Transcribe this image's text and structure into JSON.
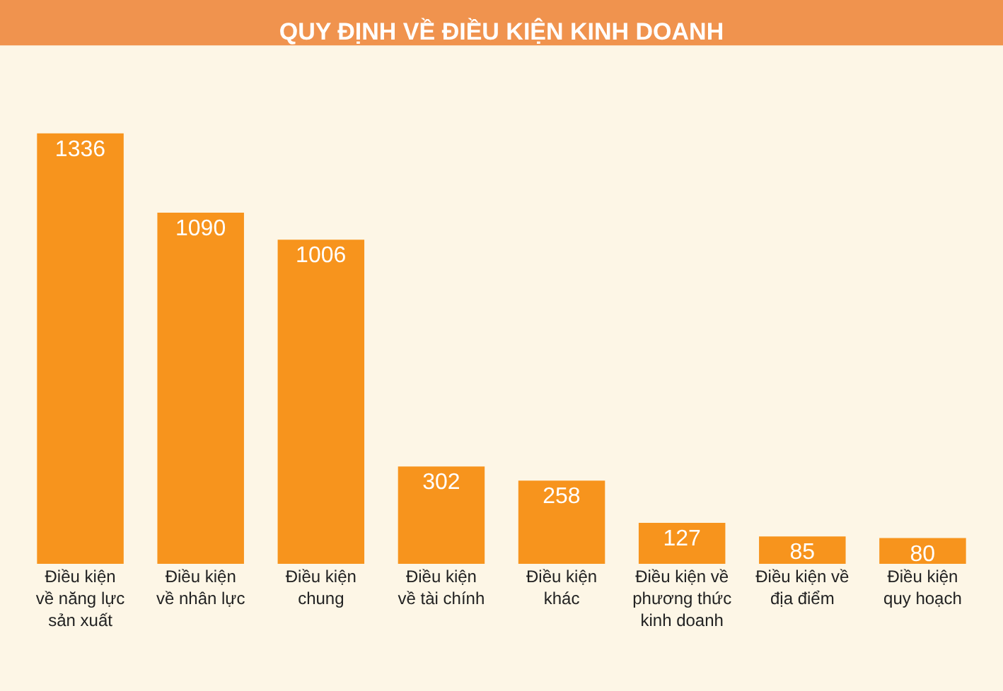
{
  "chart_data": {
    "type": "bar",
    "title": "QUY ĐỊNH VỀ ĐIỀU KIỆN KINH DOANH",
    "categories": [
      "Điều kiện\nvề năng lực\nsản xuất",
      "Điều kiện\nvề nhân lực",
      "Điều kiện\nchung",
      "Điều kiện\nvề tài chính",
      "Điều kiện\nkhác",
      "Điều kiện về\nphương thức\nkinh doanh",
      "Điều kiện về\nđịa điểm",
      "Điều kiện\nquy hoạch"
    ],
    "values": [
      1336,
      1090,
      1006,
      302,
      258,
      127,
      85,
      80
    ],
    "color": "#f7941d",
    "data_labels": true,
    "grid": false,
    "legend": false
  }
}
